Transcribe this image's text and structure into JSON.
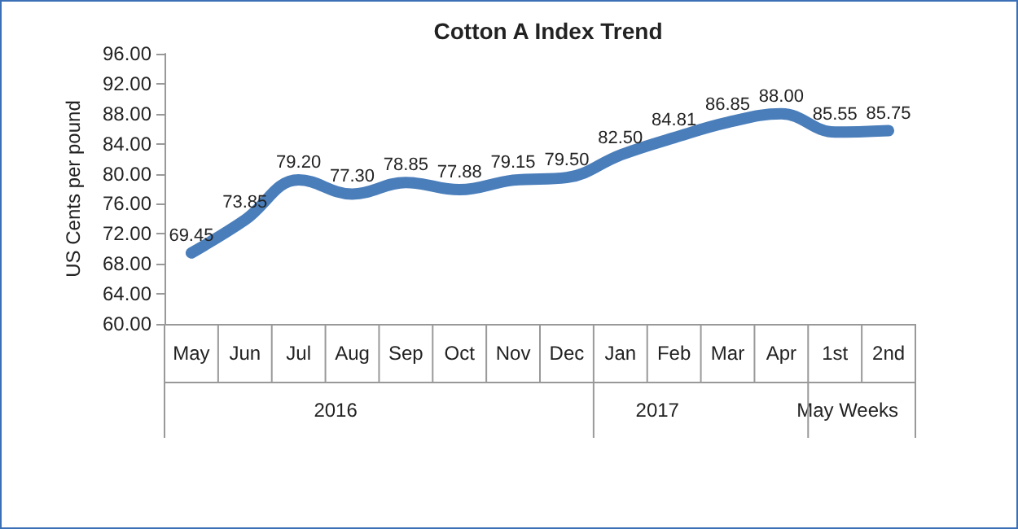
{
  "chart_data": {
    "type": "line",
    "title": "Cotton A Index Trend",
    "ylabel": "US Cents per pound",
    "categories": [
      "May",
      "Jun",
      "Jul",
      "Aug",
      "Sep",
      "Oct",
      "Nov",
      "Dec",
      "Jan",
      "Feb",
      "Mar",
      "Apr",
      "1st",
      "2nd"
    ],
    "series": [
      {
        "color": "#4a7ebb",
        "values": [
          69.45,
          73.85,
          79.2,
          77.3,
          78.85,
          77.88,
          79.15,
          79.5,
          82.5,
          84.81,
          86.85,
          88.0,
          85.55,
          85.75
        ],
        "value_labels": [
          "69.45",
          "73.85",
          "79.20",
          "77.30",
          "78.85",
          "77.88",
          "79.15",
          "79.50",
          "82.50",
          "84.81",
          "86.85",
          "88.00",
          "85.55",
          "85.75"
        ]
      }
    ],
    "ylim": [
      60,
      96
    ],
    "yticks": [
      {
        "value": 60,
        "label": "60.00"
      },
      {
        "value": 64,
        "label": "64.00"
      },
      {
        "value": 68,
        "label": "68.00"
      },
      {
        "value": 72,
        "label": "72.00"
      },
      {
        "value": 76,
        "label": "76.00"
      },
      {
        "value": 80,
        "label": "80.00"
      },
      {
        "value": 84,
        "label": "84.00"
      },
      {
        "value": 88,
        "label": "88.00"
      },
      {
        "value": 92,
        "label": "92.00"
      },
      {
        "value": 96,
        "label": "96.00"
      }
    ],
    "annotations": [
      "2016",
      "2017",
      "May Weeks"
    ],
    "grid": false,
    "marker": "none",
    "line_style": "solid"
  }
}
